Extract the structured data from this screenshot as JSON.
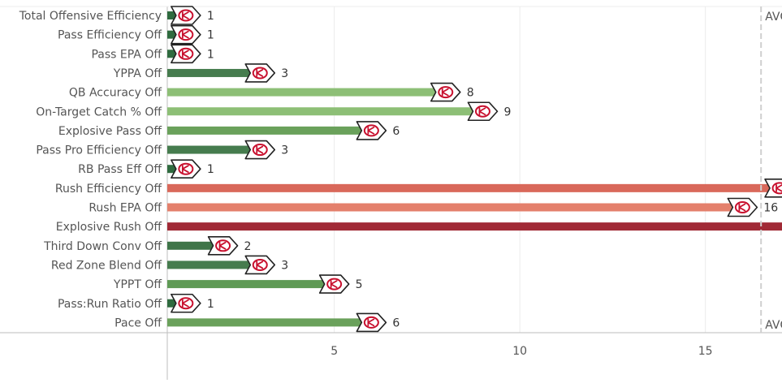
{
  "chart_data": {
    "type": "bar",
    "orientation": "horizontal",
    "title": "",
    "xlabel": "",
    "ylabel": "",
    "xlim": [
      0,
      32
    ],
    "xticks": [
      5,
      10,
      15,
      20,
      25,
      30
    ],
    "grid": true,
    "legend": "none",
    "reference_line": {
      "value": 16.5,
      "label": "AVG",
      "color": "#cfcfcf"
    },
    "categories": [
      "Total Offensive Efficiency",
      "Pass Efficiency Off",
      "Pass EPA Off",
      "YPPA Off",
      "QB Accuracy Off",
      "On-Target Catch % Off",
      "Explosive Pass Off",
      "Pass Pro Efficiency Off",
      "RB Pass Eff Off",
      "Rush Efficiency Off",
      "Rush EPA Off",
      "Explosive Rush Off",
      "Third Down Conv Off",
      "Red Zone Blend Off",
      "YPPT Off",
      "Pass:Run Ratio Off",
      "Pace Off"
    ],
    "values": [
      1,
      1,
      1,
      3,
      8,
      9,
      6,
      3,
      1,
      17,
      16,
      22,
      2,
      3,
      5,
      1,
      6
    ],
    "bar_colors": [
      "#2f6b3f",
      "#2f6b3f",
      "#2f6b3f",
      "#467c4e",
      "#8dbf76",
      "#8dbf76",
      "#6aa15b",
      "#467c4e",
      "#2f6b3f",
      "#d9685a",
      "#e4806c",
      "#a12a36",
      "#3f7548",
      "#467c4e",
      "#5f9a55",
      "#2f6b3f",
      "#6aa15b"
    ],
    "marker_icon": "arrowhead-logo-icon",
    "colors": {
      "logo_fill": "#ffffff",
      "logo_outline": "#222222",
      "logo_mark": "#c8102e",
      "grid": "#ececec",
      "axis": "#bdbdbd",
      "text": "#555555"
    }
  }
}
